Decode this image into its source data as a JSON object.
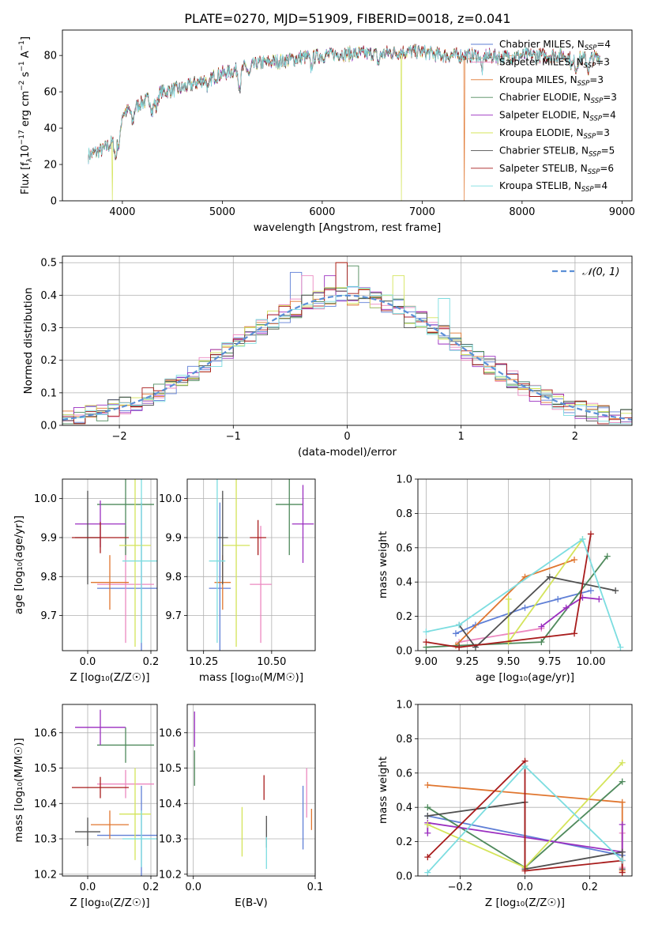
{
  "title": "PLATE=0270, MJD=51909, FIBERID=0018, z=0.041",
  "colors": {
    "Chabrier MILES": "#5f7fd6",
    "Salpeter MILES": "#ec88c0",
    "Kroupa MILES": "#e0762f",
    "Chabrier ELODIE": "#4f8a5c",
    "Salpeter ELODIE": "#9b2fc0",
    "Kroupa ELODIE": "#d4e45a",
    "Chabrier STELIB": "#505050",
    "Salpeter STELIB": "#a81c1c",
    "Kroupa STELIB": "#7cdde0",
    "normal": "#5b8fd6"
  },
  "chart_data": [
    {
      "id": "spectrum",
      "type": "line",
      "xlabel": "wavelength [Angstrom, rest frame]",
      "ylabel": "Flux [f",
      "ylabel_parts": [
        "Flux [f",
        "λ",
        "10",
        "−17",
        " erg cm",
        "−2",
        " s",
        "−1",
        " A",
        "−1",
        "]"
      ],
      "xlim": [
        3400,
        9100
      ],
      "ylim": [
        0,
        94
      ],
      "xticks": [
        4000,
        5000,
        6000,
        7000,
        8000,
        9000
      ],
      "yticks": [
        0,
        20,
        40,
        60,
        80
      ],
      "grid": false,
      "legend_position": "top-right",
      "series": [
        {
          "name": "Chabrier MILES",
          "sub": "SSP",
          "n": 4
        },
        {
          "name": "Salpeter MILES",
          "sub": "SSP",
          "n": 3
        },
        {
          "name": "Kroupa MILES",
          "sub": "SSP",
          "n": 3
        },
        {
          "name": "Chabrier ELODIE",
          "sub": "SSP",
          "n": 3
        },
        {
          "name": "Salpeter ELODIE",
          "sub": "SSP",
          "n": 4
        },
        {
          "name": "Kroupa ELODIE",
          "sub": "SSP",
          "n": 3
        },
        {
          "name": "Chabrier STELIB",
          "sub": "SSP",
          "n": 5
        },
        {
          "name": "Salpeter STELIB",
          "sub": "SSP",
          "n": 6
        },
        {
          "name": "Kroupa STELIB",
          "sub": "SSP",
          "n": 4
        }
      ],
      "continuum": [
        [
          3660,
          25
        ],
        [
          3800,
          28
        ],
        [
          3900,
          32
        ],
        [
          4000,
          48
        ],
        [
          4200,
          54
        ],
        [
          4400,
          60
        ],
        [
          4600,
          62
        ],
        [
          4800,
          66
        ],
        [
          5000,
          70
        ],
        [
          5200,
          73
        ],
        [
          5400,
          76
        ],
        [
          5600,
          77
        ],
        [
          5800,
          79
        ],
        [
          6000,
          80
        ],
        [
          6200,
          81
        ],
        [
          6400,
          81
        ],
        [
          6600,
          81
        ],
        [
          6800,
          82
        ],
        [
          7000,
          82
        ],
        [
          7200,
          80
        ],
        [
          7400,
          80
        ],
        [
          7600,
          80
        ],
        [
          7800,
          79
        ],
        [
          8000,
          80
        ],
        [
          8200,
          80
        ],
        [
          8400,
          80
        ],
        [
          8600,
          78
        ],
        [
          8780,
          79
        ]
      ],
      "dropouts": [
        {
          "series": "Kroupa ELODIE",
          "x": 3900
        },
        {
          "series": "Kroupa ELODIE",
          "x": 6790
        },
        {
          "series": "Kroupa MILES",
          "x": 7420
        }
      ]
    },
    {
      "id": "residuals",
      "type": "histogram",
      "xlabel": "(data-model)/error",
      "ylabel": "Normed distribution",
      "xlim": [
        -2.5,
        2.5
      ],
      "ylim": [
        0,
        0.52
      ],
      "xticks": [
        -2,
        -1,
        0,
        1,
        2
      ],
      "xtick_labels": [
        "−2",
        "−1",
        "0",
        "1",
        "2"
      ],
      "yticks": [
        0,
        0.1,
        0.2,
        0.3,
        0.4,
        0.5
      ],
      "ytick_labels": [
        "0.0",
        "0.1",
        "0.2",
        "0.3",
        "0.4",
        "0.5"
      ],
      "grid": true,
      "bin_width": 0.1,
      "normal_label": "𝒩(0, 1)",
      "legend_position": "top-right",
      "peaks": [
        {
          "series": "Chabrier MILES",
          "x": -0.45,
          "y": 0.47
        },
        {
          "series": "Salpeter MILES",
          "x": -0.35,
          "y": 0.46
        },
        {
          "series": "Kroupa MILES",
          "x": -0.05,
          "y": 0.5
        },
        {
          "series": "Chabrier ELODIE",
          "x": 0.05,
          "y": 0.49
        },
        {
          "series": "Salpeter ELODIE",
          "x": -0.15,
          "y": 0.46
        },
        {
          "series": "Kroupa ELODIE",
          "x": 0.45,
          "y": 0.46
        },
        {
          "series": "Chabrier STELIB",
          "x": 0.55,
          "y": 0.3
        },
        {
          "series": "Salpeter STELIB",
          "x": -0.05,
          "y": 0.5
        },
        {
          "series": "Kroupa STELIB",
          "x": 0.85,
          "y": 0.39
        }
      ]
    },
    {
      "id": "age_vs_Z",
      "type": "scatter",
      "xlabel": "Z [log₁₀(Z/Z☉)]",
      "ylabel": "age  [log₁₀(age/yr)]",
      "xlim": [
        -0.08,
        0.22
      ],
      "ylim": [
        9.61,
        10.05
      ],
      "xticks": [
        0.0,
        0.2
      ],
      "xtick_labels": [
        "0.0",
        "0.2"
      ],
      "yticks": [
        9.7,
        9.8,
        9.9,
        10.0
      ],
      "ytick_labels": [
        "9.7",
        "9.8",
        "9.9",
        "10.0"
      ],
      "grid": true,
      "points": [
        {
          "series": "Chabrier MILES",
          "x": 0.17,
          "xerr": 0.14,
          "y": 9.77,
          "yerr": 0.22
        },
        {
          "series": "Salpeter MILES",
          "x": 0.12,
          "xerr": 0.09,
          "y": 9.78,
          "yerr": 0.15
        },
        {
          "series": "Kroupa MILES",
          "x": 0.07,
          "xerr": 0.06,
          "y": 9.785,
          "yerr": 0.07
        },
        {
          "series": "Chabrier ELODIE",
          "x": 0.12,
          "xerr": 0.09,
          "y": 9.985,
          "yerr": 0.13
        },
        {
          "series": "Salpeter ELODIE",
          "x": 0.04,
          "xerr": 0.08,
          "y": 9.935,
          "yerr": 0.06
        },
        {
          "series": "Kroupa ELODIE",
          "x": 0.15,
          "xerr": 0.05,
          "y": 9.88,
          "yerr": 0.26
        },
        {
          "series": "Chabrier STELIB",
          "x": 0.0,
          "xerr": 0.04,
          "y": 9.9,
          "yerr": 0.12
        },
        {
          "series": "Salpeter STELIB",
          "x": 0.04,
          "xerr": 0.09,
          "y": 9.9,
          "yerr": 0.04
        },
        {
          "series": "Kroupa STELIB",
          "x": 0.17,
          "xerr": 0.06,
          "y": 9.84,
          "yerr": 0.21
        }
      ]
    },
    {
      "id": "age_vs_mass",
      "type": "scatter",
      "xlabel": "mass [log₁₀(M/M☉)]",
      "ylabel": "",
      "xlim": [
        10.19,
        10.66
      ],
      "ylim": [
        9.61,
        10.05
      ],
      "xticks": [
        10.25,
        10.5
      ],
      "xtick_labels": [
        "10.25",
        "10.50"
      ],
      "yticks": [
        9.7,
        9.8,
        9.9,
        10.0
      ],
      "ytick_labels": [
        "9.7",
        "9.8",
        "9.9",
        "10.0"
      ],
      "grid": true,
      "points": [
        {
          "series": "Chabrier MILES",
          "x": 10.31,
          "xerr": 0.04,
          "y": 9.77,
          "yerr": 0.22
        },
        {
          "series": "Salpeter MILES",
          "x": 10.46,
          "xerr": 0.04,
          "y": 9.78,
          "yerr": 0.15
        },
        {
          "series": "Kroupa MILES",
          "x": 10.32,
          "xerr": 0.03,
          "y": 9.785,
          "yerr": 0.07
        },
        {
          "series": "Chabrier ELODIE",
          "x": 10.565,
          "xerr": 0.05,
          "y": 9.985,
          "yerr": 0.13
        },
        {
          "series": "Salpeter ELODIE",
          "x": 10.615,
          "xerr": 0.04,
          "y": 9.935,
          "yerr": 0.1
        },
        {
          "series": "Kroupa ELODIE",
          "x": 10.37,
          "xerr": 0.05,
          "y": 9.88,
          "yerr": 0.26
        },
        {
          "series": "Chabrier STELIB",
          "x": 10.32,
          "xerr": 0.02,
          "y": 9.9,
          "yerr": 0.12
        },
        {
          "series": "Salpeter STELIB",
          "x": 10.45,
          "xerr": 0.03,
          "y": 9.9,
          "yerr": 0.045
        },
        {
          "series": "Kroupa STELIB",
          "x": 10.3,
          "xerr": 0.03,
          "y": 9.84,
          "yerr": 0.21
        }
      ]
    },
    {
      "id": "weight_vs_age",
      "type": "line",
      "xlabel": "age  [log₁₀(age/yr)]",
      "ylabel": "mass weight",
      "xlim": [
        8.95,
        10.25
      ],
      "ylim": [
        0,
        1
      ],
      "xticks": [
        9.0,
        9.25,
        9.5,
        9.75,
        10.0
      ],
      "xtick_labels": [
        "9.00",
        "9.25",
        "9.50",
        "9.75",
        "10.00"
      ],
      "yticks": [
        0,
        0.2,
        0.4,
        0.6,
        0.8,
        1.0
      ],
      "ytick_labels": [
        "0.0",
        "0.2",
        "0.4",
        "0.6",
        "0.8",
        "1.0"
      ],
      "grid": true,
      "series": [
        {
          "name": "Chabrier MILES",
          "x": [
            9.18,
            9.3,
            9.6,
            9.8,
            10.0
          ],
          "y": [
            0.1,
            0.15,
            0.25,
            0.3,
            0.35
          ]
        },
        {
          "name": "Salpeter MILES",
          "x": [
            9.2,
            9.7
          ],
          "y": [
            0.05,
            0.13
          ]
        },
        {
          "name": "Kroupa MILES",
          "x": [
            9.18,
            9.6,
            9.9
          ],
          "y": [
            0.03,
            0.43,
            0.53
          ]
        },
        {
          "name": "Chabrier ELODIE",
          "x": [
            9.0,
            9.2,
            9.7,
            10.1
          ],
          "y": [
            0.02,
            0.03,
            0.05,
            0.55
          ]
        },
        {
          "name": "Salpeter ELODIE",
          "x": [
            9.7,
            9.85,
            9.95,
            10.05
          ],
          "y": [
            0.14,
            0.25,
            0.31,
            0.3
          ]
        },
        {
          "name": "Kroupa ELODIE",
          "x": [
            9.5,
            9.5,
            9.95
          ],
          "y": [
            0.3,
            0.05,
            0.65
          ]
        },
        {
          "name": "Chabrier STELIB",
          "x": [
            9.2,
            9.3,
            9.75,
            10.15
          ],
          "y": [
            0.15,
            0.02,
            0.43,
            0.35
          ]
        },
        {
          "name": "Salpeter STELIB",
          "x": [
            9.0,
            9.2,
            9.9,
            10.0
          ],
          "y": [
            0.05,
            0.02,
            0.1,
            0.68
          ]
        },
        {
          "name": "Kroupa STELIB",
          "x": [
            9.0,
            9.2,
            9.95,
            10.18
          ],
          "y": [
            0.11,
            0.15,
            0.65,
            0.02
          ]
        }
      ]
    },
    {
      "id": "mass_vs_Z",
      "type": "scatter",
      "xlabel": "Z [log₁₀(Z/Z☉)]",
      "ylabel": "mass [log₁₀(M/M☉)]",
      "xlim": [
        -0.08,
        0.22
      ],
      "ylim": [
        10.195,
        10.68
      ],
      "xticks": [
        0.0,
        0.2
      ],
      "xtick_labels": [
        "0.0",
        "0.2"
      ],
      "yticks": [
        10.2,
        10.3,
        10.4,
        10.5,
        10.6
      ],
      "ytick_labels": [
        "10.2",
        "10.3",
        "10.4",
        "10.5",
        "10.6"
      ],
      "grid": true,
      "points": [
        {
          "series": "Chabrier MILES",
          "x": 0.17,
          "xerr": 0.14,
          "y": 10.31,
          "yerr": 0.14
        },
        {
          "series": "Salpeter MILES",
          "x": 0.12,
          "xerr": 0.09,
          "y": 10.455,
          "yerr": 0.04
        },
        {
          "series": "Kroupa MILES",
          "x": 0.07,
          "xerr": 0.06,
          "y": 10.34,
          "yerr": 0.04
        },
        {
          "series": "Chabrier ELODIE",
          "x": 0.12,
          "xerr": 0.09,
          "y": 10.565,
          "yerr": 0.05
        },
        {
          "series": "Salpeter ELODIE",
          "x": 0.04,
          "xerr": 0.08,
          "y": 10.615,
          "yerr": 0.05
        },
        {
          "series": "Kroupa ELODIE",
          "x": 0.15,
          "xerr": 0.05,
          "y": 10.37,
          "yerr": 0.13
        },
        {
          "series": "Chabrier STELIB",
          "x": 0.0,
          "xerr": 0.04,
          "y": 10.32,
          "yerr": 0.04
        },
        {
          "series": "Salpeter STELIB",
          "x": 0.04,
          "xerr": 0.09,
          "y": 10.445,
          "yerr": 0.03
        },
        {
          "series": "Kroupa STELIB",
          "x": 0.17,
          "xerr": 0.06,
          "y": 10.3,
          "yerr": 0.08
        }
      ]
    },
    {
      "id": "mass_vs_EBV",
      "type": "scatter",
      "xlabel": "E(B-V)",
      "ylabel": "",
      "xlim": [
        -0.005,
        0.1
      ],
      "ylim": [
        10.195,
        10.68
      ],
      "xticks": [
        0.0,
        0.1
      ],
      "xtick_labels": [
        "0.0",
        "0.1"
      ],
      "yticks": [
        10.2,
        10.3,
        10.4,
        10.5,
        10.6
      ],
      "ytick_labels": [
        "10.2",
        "10.3",
        "10.4",
        "10.5",
        "10.6"
      ],
      "grid": true,
      "points": [
        {
          "series": "Chabrier MILES",
          "x": 0.09,
          "xerr": 0,
          "y": 10.36,
          "yerr": 0.09
        },
        {
          "series": "Salpeter MILES",
          "x": 0.093,
          "xerr": 0,
          "y": 10.43,
          "yerr": 0.07
        },
        {
          "series": "Kroupa MILES",
          "x": 0.097,
          "xerr": 0,
          "y": 10.355,
          "yerr": 0.03
        },
        {
          "series": "Chabrier ELODIE",
          "x": 0.001,
          "xerr": 0,
          "y": 10.5,
          "yerr": 0.05
        },
        {
          "series": "Salpeter ELODIE",
          "x": 0.001,
          "xerr": 0,
          "y": 10.61,
          "yerr": 0.05
        },
        {
          "series": "Kroupa ELODIE",
          "x": 0.04,
          "xerr": 0,
          "y": 10.32,
          "yerr": 0.07
        },
        {
          "series": "Chabrier STELIB",
          "x": 0.06,
          "xerr": 0,
          "y": 10.32,
          "yerr": 0.045
        },
        {
          "series": "Salpeter STELIB",
          "x": 0.058,
          "xerr": 0,
          "y": 10.445,
          "yerr": 0.035
        },
        {
          "series": "Kroupa STELIB",
          "x": 0.06,
          "xerr": 0,
          "y": 10.26,
          "yerr": 0.045
        }
      ]
    },
    {
      "id": "weight_vs_Z",
      "type": "line",
      "xlabel": "Z [log₁₀(Z/Z☉)]",
      "ylabel": "mass weight",
      "xlim": [
        -0.33,
        0.33
      ],
      "ylim": [
        0,
        1
      ],
      "xticks": [
        -0.2,
        0.0,
        0.2
      ],
      "xtick_labels": [
        "−0.2",
        "0.0",
        "0.2"
      ],
      "yticks": [
        0,
        0.2,
        0.4,
        0.6,
        0.8,
        1.0
      ],
      "ytick_labels": [
        "0.0",
        "0.2",
        "0.4",
        "0.6",
        "0.8",
        "1.0"
      ],
      "grid": true,
      "series": [
        {
          "name": "Chabrier MILES",
          "x": [
            -0.3,
            0.3
          ],
          "y": [
            0.35,
            0.12
          ]
        },
        {
          "name": "Salpeter MILES",
          "x": [
            0.3,
            0.3
          ],
          "y": [
            0.25,
            0.05
          ]
        },
        {
          "name": "Kroupa MILES",
          "x": [
            -0.3,
            0.3,
            0.3
          ],
          "y": [
            0.53,
            0.43,
            0.03
          ]
        },
        {
          "name": "Chabrier ELODIE",
          "x": [
            -0.3,
            0.0,
            0.3
          ],
          "y": [
            0.4,
            0.05,
            0.55
          ]
        },
        {
          "name": "Salpeter ELODIE",
          "x": [
            -0.3,
            -0.3,
            0.3,
            0.3
          ],
          "y": [
            0.25,
            0.31,
            0.14,
            0.3
          ]
        },
        {
          "name": "Kroupa ELODIE",
          "x": [
            -0.3,
            0.0,
            0.3
          ],
          "y": [
            0.3,
            0.05,
            0.66
          ]
        },
        {
          "name": "Chabrier STELIB",
          "x": [
            -0.3,
            0.0,
            0.0,
            0.3,
            0.3
          ],
          "y": [
            0.35,
            0.43,
            0.04,
            0.14,
            0.04
          ]
        },
        {
          "name": "Salpeter STELIB",
          "x": [
            -0.3,
            0.0,
            0.0,
            0.3,
            0.3
          ],
          "y": [
            0.11,
            0.67,
            0.03,
            0.09,
            0.02
          ]
        },
        {
          "name": "Kroupa STELIB",
          "x": [
            -0.3,
            0.0,
            0.3
          ],
          "y": [
            0.02,
            0.64,
            0.09
          ]
        }
      ]
    }
  ]
}
